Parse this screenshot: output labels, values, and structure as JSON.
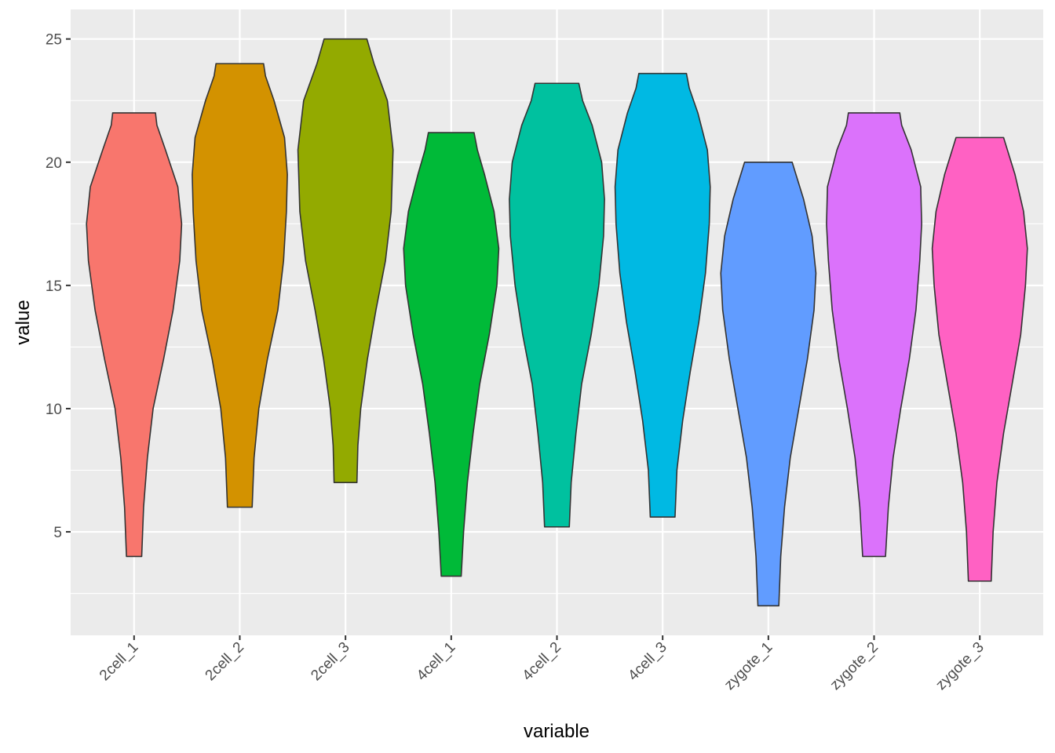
{
  "chart_data": {
    "type": "violin",
    "xlabel": "variable",
    "ylabel": "value",
    "ylim": [
      0.8,
      26.2
    ],
    "y_ticks": [
      5,
      10,
      15,
      20,
      25
    ],
    "y_tick_labels": [
      "5",
      "10",
      "15",
      "20",
      "25"
    ],
    "grid": true,
    "panel_background": "#EBEBEB",
    "outline_color": "#333333",
    "categories": [
      "2cell_1",
      "2cell_2",
      "2cell_3",
      "4cell_1",
      "4cell_2",
      "4cell_3",
      "zygote_1",
      "zygote_2",
      "zygote_3"
    ],
    "violins": [
      {
        "category": "2cell_1",
        "color": "#F8766D",
        "min": 4.0,
        "max": 22.0,
        "profile": [
          [
            4.0,
            0.16
          ],
          [
            6.0,
            0.2
          ],
          [
            8.0,
            0.28
          ],
          [
            10.0,
            0.4
          ],
          [
            12.0,
            0.62
          ],
          [
            14.0,
            0.82
          ],
          [
            16.0,
            0.96
          ],
          [
            17.5,
            1.0
          ],
          [
            19.0,
            0.92
          ],
          [
            20.5,
            0.66
          ],
          [
            21.5,
            0.48
          ],
          [
            22.0,
            0.45
          ]
        ]
      },
      {
        "category": "2cell_2",
        "color": "#D39200",
        "min": 6.0,
        "max": 24.0,
        "profile": [
          [
            6.0,
            0.26
          ],
          [
            8.0,
            0.3
          ],
          [
            10.0,
            0.4
          ],
          [
            12.0,
            0.58
          ],
          [
            14.0,
            0.8
          ],
          [
            16.0,
            0.92
          ],
          [
            18.0,
            0.98
          ],
          [
            19.5,
            1.0
          ],
          [
            21.0,
            0.94
          ],
          [
            22.5,
            0.72
          ],
          [
            23.5,
            0.54
          ],
          [
            24.0,
            0.5
          ]
        ]
      },
      {
        "category": "2cell_3",
        "color": "#93AA00",
        "min": 7.0,
        "max": 25.0,
        "profile": [
          [
            7.0,
            0.24
          ],
          [
            8.5,
            0.26
          ],
          [
            10.0,
            0.32
          ],
          [
            12.0,
            0.46
          ],
          [
            14.0,
            0.64
          ],
          [
            16.0,
            0.84
          ],
          [
            18.0,
            0.96
          ],
          [
            20.5,
            1.0
          ],
          [
            22.5,
            0.88
          ],
          [
            24.0,
            0.6
          ],
          [
            25.0,
            0.45
          ]
        ]
      },
      {
        "category": "4cell_1",
        "color": "#00BA38",
        "min": 3.2,
        "max": 21.2,
        "profile": [
          [
            3.2,
            0.21
          ],
          [
            5.0,
            0.26
          ],
          [
            7.0,
            0.34
          ],
          [
            9.0,
            0.46
          ],
          [
            11.0,
            0.6
          ],
          [
            13.0,
            0.8
          ],
          [
            15.0,
            0.96
          ],
          [
            16.5,
            1.0
          ],
          [
            18.0,
            0.9
          ],
          [
            19.5,
            0.7
          ],
          [
            20.5,
            0.55
          ],
          [
            21.2,
            0.48
          ]
        ]
      },
      {
        "category": "4cell_2",
        "color": "#00C19F",
        "min": 5.2,
        "max": 23.2,
        "profile": [
          [
            5.2,
            0.26
          ],
          [
            7.0,
            0.3
          ],
          [
            9.0,
            0.4
          ],
          [
            11.0,
            0.52
          ],
          [
            13.0,
            0.72
          ],
          [
            15.0,
            0.88
          ],
          [
            17.0,
            0.98
          ],
          [
            18.5,
            1.0
          ],
          [
            20.0,
            0.94
          ],
          [
            21.5,
            0.74
          ],
          [
            22.5,
            0.54
          ],
          [
            23.2,
            0.46
          ]
        ]
      },
      {
        "category": "4cell_3",
        "color": "#00B9E3",
        "min": 5.6,
        "max": 23.6,
        "profile": [
          [
            5.6,
            0.26
          ],
          [
            7.5,
            0.3
          ],
          [
            9.5,
            0.42
          ],
          [
            11.5,
            0.58
          ],
          [
            13.5,
            0.76
          ],
          [
            15.5,
            0.9
          ],
          [
            17.5,
            0.98
          ],
          [
            19.0,
            1.0
          ],
          [
            20.5,
            0.94
          ],
          [
            22.0,
            0.74
          ],
          [
            23.0,
            0.56
          ],
          [
            23.6,
            0.5
          ]
        ]
      },
      {
        "category": "zygote_1",
        "color": "#619CFF",
        "min": 2.0,
        "max": 20.0,
        "profile": [
          [
            2.0,
            0.22
          ],
          [
            4.0,
            0.26
          ],
          [
            6.0,
            0.34
          ],
          [
            8.0,
            0.46
          ],
          [
            10.0,
            0.64
          ],
          [
            12.0,
            0.82
          ],
          [
            14.0,
            0.96
          ],
          [
            15.5,
            1.0
          ],
          [
            17.0,
            0.92
          ],
          [
            18.5,
            0.74
          ],
          [
            19.5,
            0.58
          ],
          [
            20.0,
            0.5
          ]
        ]
      },
      {
        "category": "zygote_2",
        "color": "#DB72FB",
        "min": 4.0,
        "max": 22.0,
        "profile": [
          [
            4.0,
            0.24
          ],
          [
            6.0,
            0.3
          ],
          [
            8.0,
            0.4
          ],
          [
            10.0,
            0.56
          ],
          [
            12.0,
            0.74
          ],
          [
            14.0,
            0.88
          ],
          [
            16.0,
            0.96
          ],
          [
            17.5,
            1.0
          ],
          [
            19.0,
            0.98
          ],
          [
            20.5,
            0.78
          ],
          [
            21.5,
            0.58
          ],
          [
            22.0,
            0.54
          ]
        ]
      },
      {
        "category": "zygote_3",
        "color": "#FF61C3",
        "min": 3.0,
        "max": 21.0,
        "profile": [
          [
            3.0,
            0.24
          ],
          [
            5.0,
            0.28
          ],
          [
            7.0,
            0.36
          ],
          [
            9.0,
            0.5
          ],
          [
            11.0,
            0.68
          ],
          [
            13.0,
            0.86
          ],
          [
            15.0,
            0.96
          ],
          [
            16.5,
            1.0
          ],
          [
            18.0,
            0.92
          ],
          [
            19.5,
            0.74
          ],
          [
            20.5,
            0.58
          ],
          [
            21.0,
            0.5
          ]
        ]
      }
    ]
  }
}
